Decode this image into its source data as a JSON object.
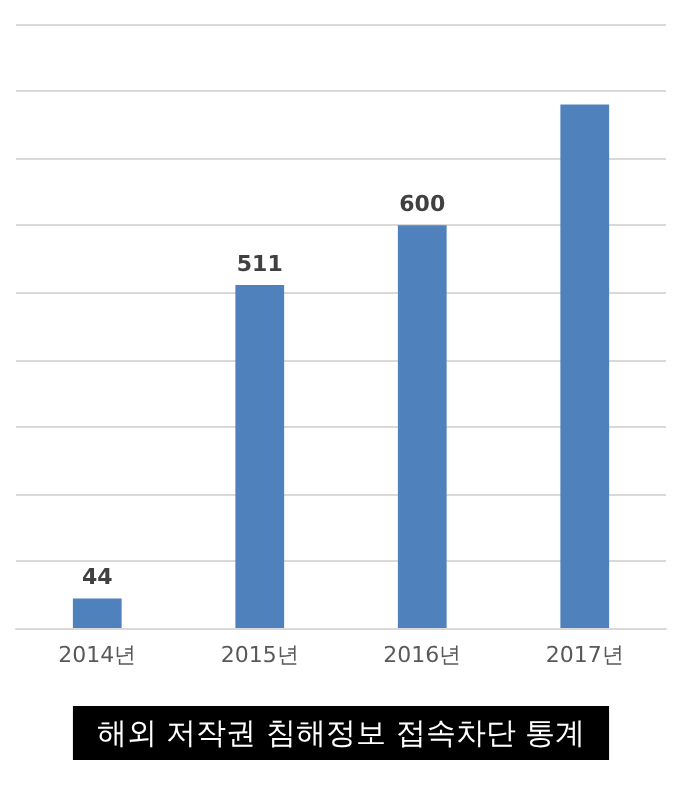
{
  "chart_data": {
    "type": "bar",
    "title": "해외 저작권 침해정보 접속차단 통계",
    "categories": [
      "2014년",
      "2015년",
      "2016년",
      "2017년"
    ],
    "values": [
      44,
      511,
      600,
      780
    ],
    "color": "#4f81bd",
    "value_labels": [
      "44",
      "511",
      "600",
      null
    ],
    "ylim": [
      0,
      900
    ],
    "yticks": [
      {
        "value": 0,
        "label": null
      },
      {
        "value": 100,
        "label": null
      },
      {
        "value": 200,
        "label": null
      },
      {
        "value": 300,
        "label": null
      },
      {
        "value": 400,
        "label": null
      },
      {
        "value": 500,
        "label": null
      },
      {
        "value": 600,
        "label": null
      },
      {
        "value": 700,
        "label": null
      },
      {
        "value": 800,
        "label": null
      },
      {
        "value": 900,
        "label": null
      }
    ],
    "tick_labels": "x",
    "grid": "y"
  }
}
